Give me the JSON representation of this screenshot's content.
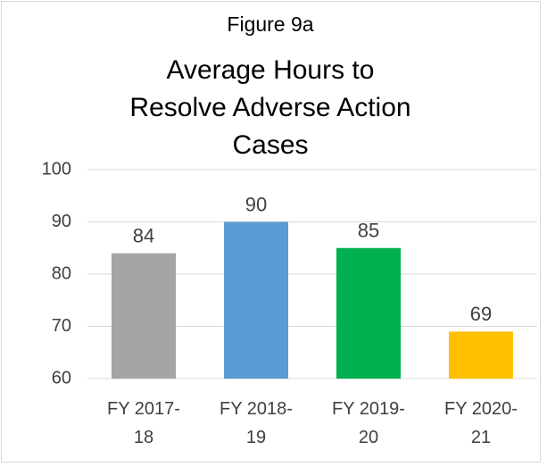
{
  "chart_data": {
    "type": "bar",
    "title": "Figure 9a",
    "subtitle": "Average Hours to Resolve Adverse Action Cases",
    "categories": [
      "FY 2017-18",
      "FY 2018-19",
      "FY 2019-20",
      "FY 2020-21"
    ],
    "values": [
      84,
      90,
      85,
      69
    ],
    "colors": [
      "#a5a5a5",
      "#5b9bd5",
      "#00b050",
      "#ffc000"
    ],
    "ylim": [
      60,
      100
    ],
    "yticks": [
      60,
      70,
      80,
      90,
      100
    ],
    "grid": true
  }
}
